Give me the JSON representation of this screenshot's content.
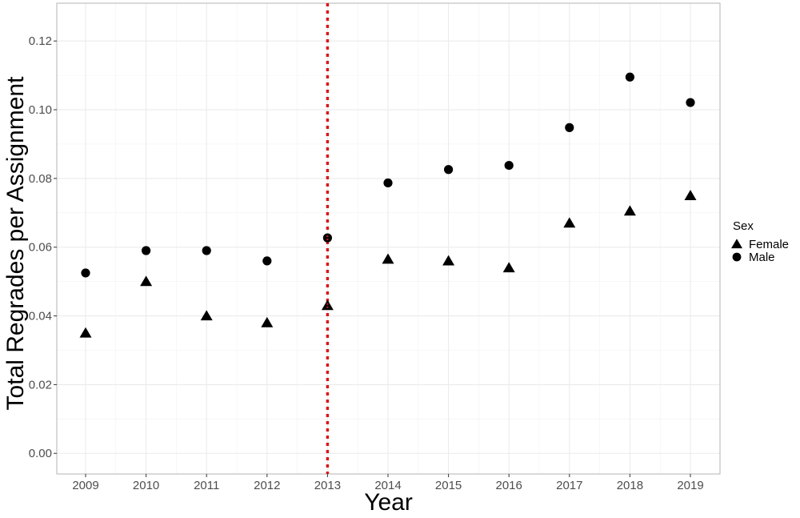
{
  "chart_data": {
    "type": "scatter",
    "title": "",
    "xlabel": "Year",
    "ylabel": "Total Regrades per Assignment",
    "categories": [
      "2009",
      "2010",
      "2011",
      "2012",
      "2013",
      "2014",
      "2015",
      "2016",
      "2017",
      "2018",
      "2019"
    ],
    "ylim": [
      -0.006,
      0.131
    ],
    "yticks": [
      "0.00",
      "0.02",
      "0.04",
      "0.06",
      "0.08",
      "0.10",
      "0.12"
    ],
    "grid": true,
    "legend": {
      "title": "Sex",
      "position": "right"
    },
    "series": [
      {
        "name": "Female",
        "marker": "triangle",
        "color": "#000000",
        "values": [
          0.035,
          0.05,
          0.04,
          0.038,
          0.043,
          0.0565,
          0.056,
          0.054,
          0.067,
          0.0705,
          0.075
        ]
      },
      {
        "name": "Male",
        "marker": "circle",
        "color": "#000000",
        "values": [
          0.0525,
          0.059,
          0.059,
          0.056,
          0.0627,
          0.0787,
          0.0826,
          0.0838,
          0.0948,
          0.1095,
          0.1021
        ]
      }
    ],
    "reference_line": {
      "x": "2013",
      "color": "#d7191c",
      "style": "dotted"
    }
  }
}
